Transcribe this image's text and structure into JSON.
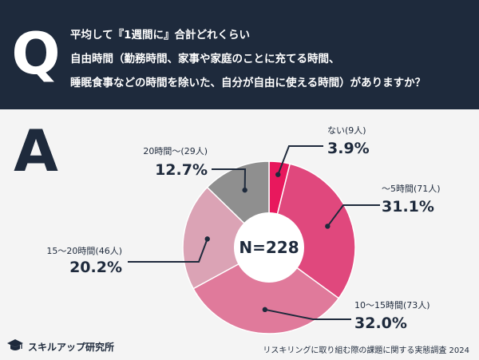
{
  "header": {
    "q_letter": "Q",
    "question_lines": [
      "平均して『1週間に』合計どれくらい",
      "自由時間（勤務時間、家事や家庭のことに充てる時間、",
      "睡眠食事などの時間を除いた、自分が自由に使える時間）がありますか？"
    ]
  },
  "answer": {
    "a_letter": "A"
  },
  "chart_data": {
    "type": "pie",
    "center_label": "N=228",
    "slices": [
      {
        "name": "ない(9人)",
        "value": 3.9,
        "label": "3.9%",
        "color": "#e8185d"
      },
      {
        "name": "〜5時間(71人)",
        "value": 31.1,
        "label": "31.1%",
        "color": "#e0487d"
      },
      {
        "name": "10〜15時間(73人)",
        "value": 32.0,
        "label": "32.0%",
        "color": "#e07a9b"
      },
      {
        "name": "15〜20時間(46人)",
        "value": 20.2,
        "label": "20.2%",
        "color": "#dba3b5"
      },
      {
        "name": "20時間〜(29人)",
        "value": 12.7,
        "label": "12.7%",
        "color": "#8f8f8f"
      }
    ]
  },
  "footer": {
    "logo_text": "スキルアップ研究所",
    "note": "リスキリングに取り組む際の課題に関する実態調査 2024"
  },
  "colors": {
    "navy": "#1e2a3c",
    "background": "#f4f4f4"
  }
}
